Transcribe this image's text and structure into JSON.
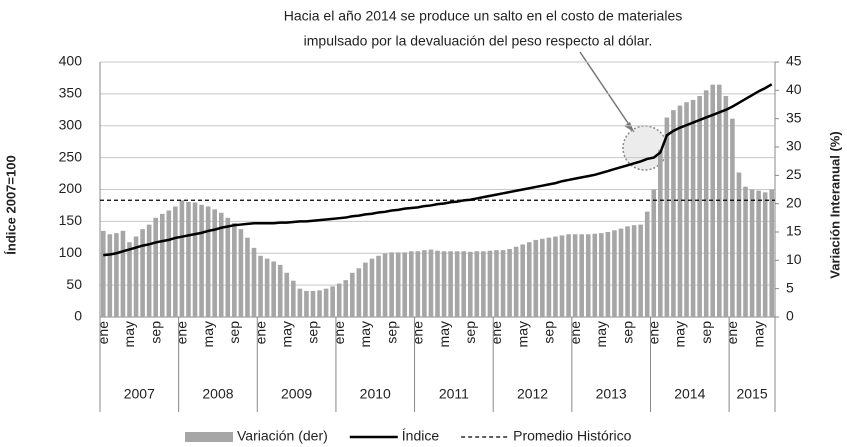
{
  "chart_data": {
    "type": "bar-line",
    "annotation": [
      "Hacia el año 2014 se produce un salto en el costo de materiales",
      "impulsado por la devaluación del peso respecto al dólar."
    ],
    "ylabel": "Índice 2007=100",
    "y2label": "Variación Interanual (%)",
    "categories": [
      "ene",
      null,
      null,
      null,
      "may",
      null,
      null,
      null,
      "sep",
      null,
      null,
      null,
      "ene",
      null,
      null,
      null,
      "may",
      null,
      null,
      null,
      "sep",
      null,
      null,
      null,
      "ene",
      null,
      null,
      null,
      "may",
      null,
      null,
      null,
      "sep",
      null,
      null,
      null,
      "ene",
      null,
      null,
      null,
      "may",
      null,
      null,
      null,
      "sep",
      null,
      null,
      null,
      "ene",
      null,
      null,
      null,
      "may",
      null,
      null,
      null,
      "sep",
      null,
      null,
      null,
      "ene",
      null,
      null,
      null,
      "may",
      null,
      null,
      null,
      "sep",
      null,
      null,
      null,
      "ene",
      null,
      null,
      null,
      "may",
      null,
      null,
      null,
      "sep",
      null,
      null,
      null,
      "ene",
      null,
      null,
      null,
      "may",
      null,
      null,
      null,
      "sep",
      null,
      null,
      null,
      "ene",
      null,
      null,
      null,
      "may",
      null,
      null
    ],
    "groups": [
      "2007",
      "2008",
      "2009",
      "2010",
      "2011",
      "2012",
      "2013",
      "2014",
      "2015"
    ],
    "ylim": [
      0,
      400
    ],
    "yticks": [
      0,
      50,
      100,
      150,
      200,
      250,
      300,
      350,
      400
    ],
    "y2lim": [
      0,
      45
    ],
    "y2ticks": [
      0,
      5,
      10,
      15,
      20,
      25,
      30,
      35,
      40,
      45
    ],
    "grid": true,
    "series": [
      {
        "name": "Variación (der)",
        "type": "bar",
        "axis": "y2",
        "color": "#a6a6a6",
        "values": [
          15.2,
          14.6,
          14.8,
          15.2,
          13.2,
          14.2,
          15.5,
          16.3,
          17.5,
          18.2,
          18.8,
          19.5,
          20.6,
          20.3,
          20.2,
          19.8,
          19.5,
          19.0,
          18.4,
          17.5,
          16.6,
          15.5,
          14.0,
          12.2,
          10.8,
          10.3,
          9.8,
          9.2,
          7.8,
          6.4,
          5.0,
          4.6,
          4.6,
          4.7,
          5.0,
          5.4,
          5.9,
          6.5,
          7.8,
          8.6,
          9.6,
          10.3,
          10.8,
          11.2,
          11.4,
          11.4,
          11.4,
          11.6,
          11.6,
          11.8,
          11.9,
          11.7,
          11.6,
          11.6,
          11.6,
          11.6,
          11.5,
          11.6,
          11.6,
          11.7,
          11.8,
          11.8,
          12.0,
          12.4,
          12.8,
          13.2,
          13.6,
          13.8,
          14.0,
          14.2,
          14.4,
          14.6,
          14.6,
          14.6,
          14.6,
          14.7,
          14.8,
          15.0,
          15.3,
          15.6,
          16.0,
          16.2,
          16.3,
          18.6,
          22.5,
          29.5,
          35.2,
          36.5,
          37.3,
          37.9,
          38.3,
          39.0,
          40.0,
          41.0,
          41.0,
          39.0,
          35.0,
          25.5,
          23.0,
          22.5,
          22.3,
          22.0,
          22.5
        ]
      },
      {
        "name": "Índice",
        "type": "line",
        "axis": "y",
        "color": "#000000",
        "values": [
          97,
          98,
          100,
          103,
          106,
          109,
          112,
          114,
          117,
          119,
          121,
          124,
          126,
          128,
          130,
          132,
          135,
          137,
          140,
          142,
          144,
          145,
          146,
          147,
          147,
          147,
          147,
          148,
          148,
          149,
          150,
          150,
          151,
          152,
          153,
          154,
          155,
          156,
          158,
          159,
          161,
          162,
          164,
          165,
          167,
          168,
          170,
          171,
          172,
          174,
          175,
          177,
          178,
          180,
          181,
          183,
          184,
          186,
          188,
          190,
          192,
          194,
          196,
          198,
          200,
          202,
          204,
          206,
          208,
          210,
          213,
          215,
          217,
          219,
          221,
          223,
          226,
          229,
          232,
          235,
          238,
          241,
          244,
          248,
          250,
          258,
          285,
          292,
          297,
          301,
          305,
          309,
          313,
          317,
          321,
          325,
          330,
          336,
          342,
          348,
          354,
          359,
          365
        ]
      }
    ],
    "reference_lines": [
      {
        "name": "Promedio Histórico",
        "axis": "y2",
        "value": 20.6,
        "color": "#000000",
        "style": "dashed"
      }
    ]
  }
}
